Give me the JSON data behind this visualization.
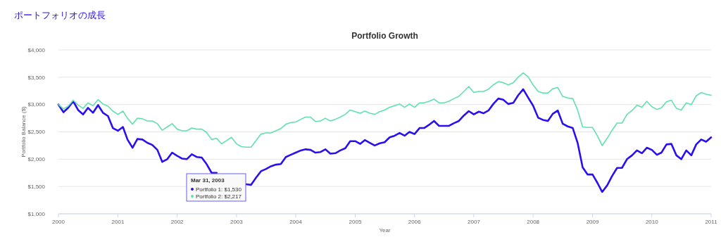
{
  "chart_data": {
    "type": "line",
    "title": "ポートフォリオの成長",
    "subtitle": "Portfolio Growth",
    "xlabel": "Year",
    "ylabel": "Portfolio Balance ($)",
    "grid": "y",
    "x": [
      "2000-01",
      "2000-02",
      "2000-03",
      "2000-04",
      "2000-05",
      "2000-06",
      "2000-07",
      "2000-08",
      "2000-09",
      "2000-10",
      "2000-11",
      "2000-12",
      "2001-01",
      "2001-02",
      "2001-03",
      "2001-04",
      "2001-05",
      "2001-06",
      "2001-07",
      "2001-08",
      "2001-09",
      "2001-10",
      "2001-11",
      "2001-12",
      "2002-01",
      "2002-02",
      "2002-03",
      "2002-04",
      "2002-05",
      "2002-06",
      "2002-07",
      "2002-08",
      "2002-09",
      "2002-10",
      "2002-11",
      "2002-12",
      "2003-01",
      "2003-02",
      "2003-03",
      "2003-04",
      "2003-05",
      "2003-06",
      "2003-07",
      "2003-08",
      "2003-09",
      "2003-10",
      "2003-11",
      "2003-12",
      "2004-01",
      "2004-02",
      "2004-03",
      "2004-04",
      "2004-05",
      "2004-06",
      "2004-07",
      "2004-08",
      "2004-09",
      "2004-10",
      "2004-11",
      "2004-12",
      "2005-01",
      "2005-02",
      "2005-03",
      "2005-04",
      "2005-05",
      "2005-06",
      "2005-07",
      "2005-08",
      "2005-09",
      "2005-10",
      "2005-11",
      "2005-12",
      "2006-01",
      "2006-02",
      "2006-03",
      "2006-04",
      "2006-05",
      "2006-06",
      "2006-07",
      "2006-08",
      "2006-09",
      "2006-10",
      "2006-11",
      "2006-12",
      "2007-01",
      "2007-02",
      "2007-03",
      "2007-04",
      "2007-05",
      "2007-06",
      "2007-07",
      "2007-08",
      "2007-09",
      "2007-10",
      "2007-11",
      "2007-12",
      "2008-01",
      "2008-02",
      "2008-03",
      "2008-04",
      "2008-05",
      "2008-06",
      "2008-07",
      "2008-08",
      "2008-09",
      "2008-10",
      "2008-11",
      "2008-12",
      "2009-01",
      "2009-02",
      "2009-03",
      "2009-04",
      "2009-05",
      "2009-06",
      "2009-07",
      "2009-08",
      "2009-09",
      "2009-10",
      "2009-11",
      "2009-12",
      "2010-01",
      "2010-02",
      "2010-03",
      "2010-04",
      "2010-05",
      "2010-06",
      "2010-07",
      "2010-08",
      "2010-09",
      "2010-10",
      "2010-11",
      "2010-12",
      "2011-01"
    ],
    "series": [
      {
        "color": "#2a10f0",
        "values": [
          3000,
          2860,
          2940,
          3060,
          2900,
          2820,
          2940,
          2850,
          2990,
          2850,
          2790,
          2570,
          2520,
          2590,
          2360,
          2210,
          2370,
          2360,
          2300,
          2260,
          2170,
          1950,
          2000,
          2120,
          2060,
          2010,
          2000,
          2090,
          2040,
          2030,
          1910,
          1750,
          1750,
          null,
          null,
          null,
          null,
          null,
          1540,
          1530,
          1660,
          1780,
          1820,
          1870,
          1900,
          1910,
          2040,
          2080,
          2120,
          2160,
          2180,
          2170,
          2120,
          2130,
          2180,
          2100,
          2110,
          2160,
          2200,
          2330,
          2330,
          2280,
          2350,
          2300,
          2250,
          2290,
          2310,
          2400,
          2430,
          2480,
          2430,
          2500,
          2460,
          2570,
          2570,
          2630,
          2700,
          2610,
          2610,
          2610,
          2660,
          2700,
          2800,
          2880,
          2820,
          2870,
          2840,
          2890,
          3010,
          3110,
          3090,
          3010,
          3030,
          3170,
          3280,
          3130,
          2980,
          2760,
          2720,
          2700,
          2830,
          2890,
          2650,
          2600,
          2570,
          2300,
          1850,
          1720,
          1720,
          1560,
          1400,
          1520,
          1690,
          1840,
          1840,
          2000,
          2070,
          2160,
          2110,
          2210,
          2170,
          2080,
          2120,
          2270,
          2280,
          2070,
          2000,
          2160,
          2070,
          2270,
          2360,
          2320,
          2400
        ]
      },
      {
        "color": "#62e0b0",
        "values": [
          3000,
          2920,
          2970,
          3080,
          2990,
          2930,
          3030,
          2980,
          3090,
          3010,
          2970,
          2880,
          2820,
          2880,
          2750,
          2640,
          2750,
          2740,
          2700,
          2700,
          2650,
          2530,
          2590,
          2650,
          2550,
          2520,
          2520,
          2570,
          2550,
          2550,
          2490,
          2360,
          2380,
          2280,
          2340,
          2400,
          2280,
          2230,
          2220,
          2220,
          2340,
          2460,
          2480,
          2480,
          2520,
          2560,
          2640,
          2670,
          2680,
          2730,
          2770,
          2770,
          2690,
          2700,
          2750,
          2700,
          2730,
          2770,
          2820,
          2900,
          2870,
          2840,
          2880,
          2840,
          2820,
          2870,
          2900,
          2950,
          2980,
          3010,
          2950,
          3010,
          2950,
          3030,
          3030,
          3060,
          3100,
          3030,
          3030,
          3060,
          3110,
          3150,
          3240,
          3330,
          3220,
          3240,
          3240,
          3280,
          3360,
          3420,
          3400,
          3360,
          3400,
          3500,
          3580,
          3510,
          3360,
          3240,
          3210,
          3210,
          3290,
          3310,
          3150,
          3120,
          3110,
          2900,
          2590,
          2580,
          2580,
          2420,
          2250,
          2380,
          2530,
          2660,
          2660,
          2820,
          2890,
          2990,
          2950,
          3060,
          2960,
          2910,
          2940,
          3050,
          3080,
          2930,
          2900,
          3030,
          3000,
          3160,
          3220,
          3190,
          3170
        ]
      }
    ],
    "xlim": [
      "2000",
      "2011"
    ],
    "xticks": [
      "2000",
      "2001",
      "2002",
      "2003",
      "2004",
      "2005",
      "2006",
      "2007",
      "2008",
      "2009",
      "2010",
      "2011"
    ],
    "ylim": [
      1000,
      4000
    ],
    "yticks": [
      {
        "value": 1000,
        "label": "$1,000"
      },
      {
        "value": 1500,
        "label": "$1,500"
      },
      {
        "value": 2000,
        "label": "$2,000"
      },
      {
        "value": 2500,
        "label": "$2,500"
      },
      {
        "value": 3000,
        "label": "$3,000"
      },
      {
        "value": 3500,
        "label": "$3,500"
      },
      {
        "value": 4000,
        "label": "$4,000"
      }
    ],
    "annotations": [
      "Mar 31, 2003",
      "Portfolio 1: $1,530",
      "Portfolio 2: $2,217"
    ]
  }
}
